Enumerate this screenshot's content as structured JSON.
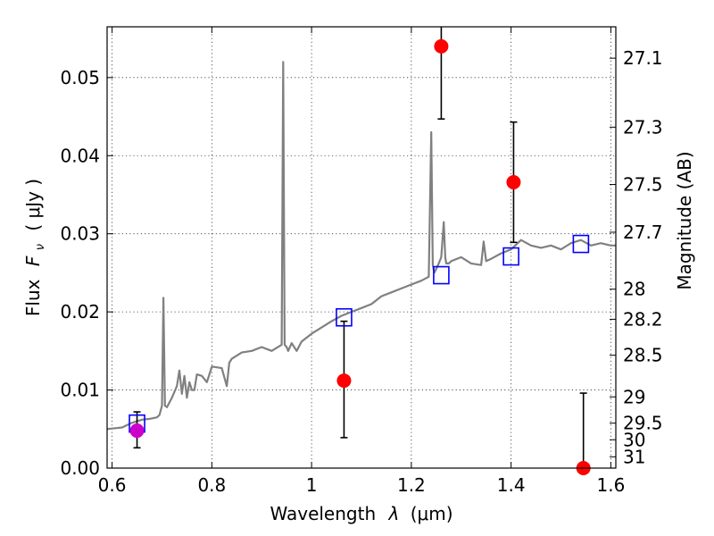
{
  "chart_data": {
    "type": "line",
    "xlabel_prefix": "Wavelength",
    "xlabel_symbol": "λ",
    "xlabel_unit": "(μm)",
    "ylabel_prefix": "Flux",
    "ylabel_symbol": "F",
    "ylabel_subscript": "ν",
    "ylabel_unit": "( μJy )",
    "y2label": "Magnitude (AB)",
    "xlim": [
      0.59,
      1.61
    ],
    "ylim": [
      0.0,
      0.0565
    ],
    "grid": true,
    "x_ticks": [
      0.6,
      0.8,
      1.0,
      1.2,
      1.4,
      1.6
    ],
    "x_tick_labels": [
      "0.6",
      "0.8",
      "1",
      "1.2",
      "1.4",
      "1.6"
    ],
    "y_ticks": [
      0.0,
      0.01,
      0.02,
      0.03,
      0.04,
      0.05
    ],
    "y_tick_labels": [
      "0.00",
      "0.01",
      "0.02",
      "0.03",
      "0.04",
      "0.05"
    ],
    "mag_ticks": [
      27.1,
      27.3,
      27.5,
      27.7,
      28,
      28.2,
      28.5,
      29,
      29.5,
      30,
      31
    ],
    "mag_tick_labels": [
      "27.1",
      "27.3",
      "27.5",
      "27.7",
      "28",
      "28.2",
      "28.5",
      "29",
      "29.5",
      "30",
      "31"
    ],
    "series": [
      {
        "kind": "line",
        "color": "#808080",
        "x": [
          0.59,
          0.62,
          0.64,
          0.66,
          0.675,
          0.69,
          0.695,
          0.7,
          0.703,
          0.706,
          0.71,
          0.72,
          0.73,
          0.735,
          0.74,
          0.745,
          0.75,
          0.755,
          0.76,
          0.765,
          0.77,
          0.78,
          0.79,
          0.8,
          0.82,
          0.83,
          0.835,
          0.84,
          0.86,
          0.88,
          0.9,
          0.92,
          0.94,
          0.943,
          0.946,
          0.95,
          0.953,
          0.96,
          0.97,
          0.98,
          1.0,
          1.02,
          1.04,
          1.06,
          1.08,
          1.1,
          1.12,
          1.14,
          1.16,
          1.18,
          1.2,
          1.22,
          1.235,
          1.24,
          1.243,
          1.246,
          1.25,
          1.255,
          1.26,
          1.265,
          1.268,
          1.27,
          1.275,
          1.28,
          1.3,
          1.32,
          1.34,
          1.345,
          1.35,
          1.36,
          1.38,
          1.4,
          1.42,
          1.44,
          1.46,
          1.48,
          1.5,
          1.52,
          1.54,
          1.56,
          1.58,
          1.6,
          1.61
        ],
        "y": [
          0.005,
          0.0052,
          0.0058,
          0.0062,
          0.0063,
          0.0065,
          0.0068,
          0.008,
          0.0218,
          0.008,
          0.0078,
          0.009,
          0.0105,
          0.0125,
          0.0095,
          0.0118,
          0.009,
          0.011,
          0.01,
          0.01,
          0.012,
          0.0118,
          0.011,
          0.013,
          0.0128,
          0.0105,
          0.0135,
          0.014,
          0.0148,
          0.015,
          0.0155,
          0.015,
          0.0158,
          0.052,
          0.0158,
          0.0155,
          0.015,
          0.016,
          0.015,
          0.0162,
          0.0172,
          0.018,
          0.0188,
          0.0195,
          0.02,
          0.0205,
          0.021,
          0.022,
          0.0225,
          0.023,
          0.0235,
          0.024,
          0.0245,
          0.043,
          0.026,
          0.025,
          0.0255,
          0.0262,
          0.027,
          0.0315,
          0.027,
          0.0262,
          0.0262,
          0.0265,
          0.027,
          0.0262,
          0.026,
          0.029,
          0.0265,
          0.0268,
          0.0275,
          0.028,
          0.0292,
          0.0285,
          0.0282,
          0.0285,
          0.028,
          0.0288,
          0.0292,
          0.0285,
          0.0288,
          0.0285,
          0.0285
        ]
      },
      {
        "kind": "square",
        "color": "#0000ff",
        "x": [
          0.65,
          1.065,
          1.26,
          1.4,
          1.54
        ],
        "y": [
          0.0057,
          0.0193,
          0.0247,
          0.0271,
          0.0287
        ]
      },
      {
        "kind": "errorbar-point",
        "color": "#ff0000",
        "x": [
          1.065,
          1.26,
          1.405,
          1.545
        ],
        "y": [
          0.0112,
          0.054,
          0.0366,
          0.0
        ],
        "yerr_low": [
          0.0073,
          0.0093,
          0.0077,
          0.0
        ],
        "yerr_high": [
          0.0076,
          0.004,
          0.0077,
          0.0096
        ]
      },
      {
        "kind": "errorbar-point",
        "color": "#cc00cc",
        "x": [
          0.65
        ],
        "y": [
          0.0048
        ],
        "yerr_low": [
          0.0022
        ],
        "yerr_high": [
          0.0024
        ]
      }
    ]
  }
}
